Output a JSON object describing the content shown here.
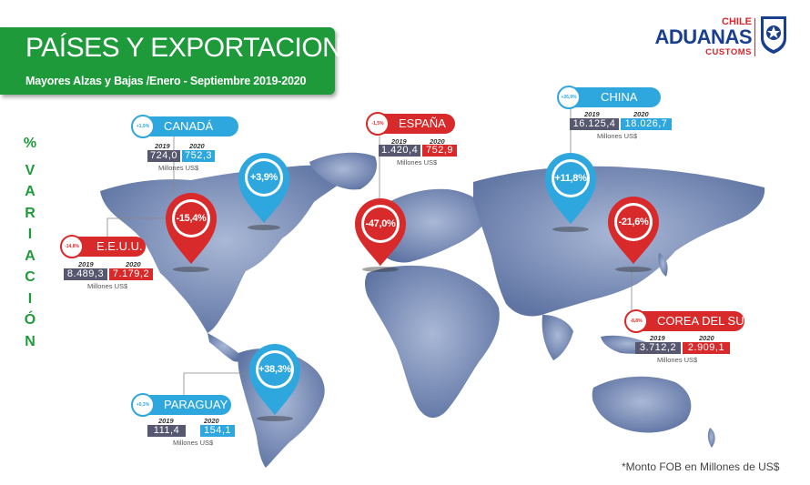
{
  "header": {
    "title": "PAÍSES Y EXPORTACIONES",
    "subtitle": "Mayores Alzas y Bajas /Enero - Septiembre 2019-2020"
  },
  "logo": {
    "top": "CHILE",
    "main": "ADUANAS",
    "bottom": "CUSTOMS",
    "color_primary": "#1a3f8f",
    "color_accent": "#d7272b"
  },
  "side_label": [
    "%",
    "V",
    "A",
    "R",
    "I",
    "A",
    "C",
    "I",
    "Ó",
    "N"
  ],
  "colors": {
    "green": "#1f9a3b",
    "blue": "#2ea7df",
    "red": "#d82a2a",
    "grey": "#575870",
    "map": "#7d91b8"
  },
  "countries": [
    {
      "key": "canada",
      "name": "CANADÁ",
      "badge": "+1,9%",
      "pin": "+3,9%",
      "trend": "up",
      "year1": "2019",
      "year2": "2020",
      "v2019": "724,0",
      "v2020": "752,3",
      "unit": "Millones US$"
    },
    {
      "key": "eeuu",
      "name": "E.E.U.U.",
      "badge": "-14,8%",
      "pin": "-15,4%",
      "trend": "down",
      "year1": "2019",
      "year2": "2020",
      "v2019": "8.489,3",
      "v2020": "7.179,2",
      "unit": "Millones US$"
    },
    {
      "key": "espana",
      "name": "ESPAÑA",
      "badge": "-1,5%",
      "pin": "-47,0%",
      "trend": "down",
      "year1": "2019",
      "year2": "2020",
      "v2019": "1.420,4",
      "v2020": "752,9",
      "unit": "Millones US$"
    },
    {
      "key": "china",
      "name": "CHINA",
      "badge": "+26,9%",
      "pin": "+11,8%",
      "trend": "up",
      "year1": "2019",
      "year2": "2020",
      "v2019": "16.125,4",
      "v2020": "18.026,7",
      "unit": "Millones US$"
    },
    {
      "key": "corea",
      "name": "COREA DEL SUR",
      "badge": "-8,8%",
      "pin": "-21,6%",
      "trend": "down",
      "year1": "2019",
      "year2": "2020",
      "v2019": "3.712,2",
      "v2020": "2.909,1",
      "unit": "Millones US$"
    },
    {
      "key": "paraguay",
      "name": "PARAGUAY",
      "badge": "+0,3%",
      "pin": "+38,3%",
      "trend": "up",
      "year1": "2019",
      "year2": "2020",
      "v2019": "111,4",
      "v2020": "154,1",
      "unit": "Millones US$"
    }
  ],
  "footnote": "*Monto FOB en Millones de US$"
}
